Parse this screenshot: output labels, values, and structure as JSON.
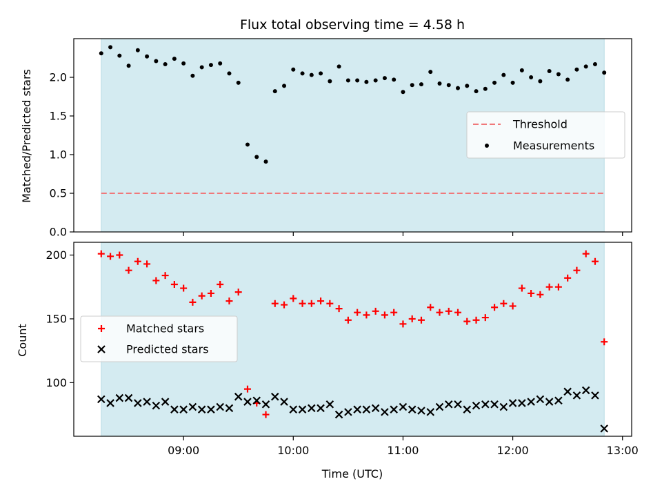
{
  "chart_data": [
    {
      "type": "scatter",
      "title": "Flux total observing time = 4.58 h",
      "xlabel": "",
      "ylabel": "Matched/Predicted stars",
      "ylim": [
        0,
        2.5
      ],
      "xlim": [
        "08:00",
        "13:05"
      ],
      "yticks": [
        0.0,
        0.5,
        1.0,
        1.5,
        2.0
      ],
      "ytick_labels": [
        "0.0",
        "0.5",
        "1.0",
        "1.5",
        "2.0"
      ],
      "shaded_span": [
        "08:15",
        "12:50"
      ],
      "shade_color": "#d4ebf1",
      "legend_position": "center-right",
      "threshold": {
        "name": "Threshold",
        "value": 0.5,
        "color": "#f0787a",
        "style": "dashed"
      },
      "series": [
        {
          "name": "Measurements",
          "color": "#000000",
          "marker": "dot",
          "x": [
            "08:15",
            "08:20",
            "08:25",
            "08:30",
            "08:35",
            "08:40",
            "08:45",
            "08:50",
            "08:55",
            "09:00",
            "09:05",
            "09:10",
            "09:15",
            "09:20",
            "09:25",
            "09:30",
            "09:35",
            "09:40",
            "09:45",
            "09:50",
            "09:55",
            "10:00",
            "10:05",
            "10:10",
            "10:15",
            "10:20",
            "10:25",
            "10:30",
            "10:35",
            "10:40",
            "10:45",
            "10:50",
            "10:55",
            "11:00",
            "11:05",
            "11:10",
            "11:15",
            "11:20",
            "11:25",
            "11:30",
            "11:35",
            "11:40",
            "11:45",
            "11:50",
            "11:55",
            "12:00",
            "12:05",
            "12:10",
            "12:15",
            "12:20",
            "12:25",
            "12:30",
            "12:35",
            "12:40",
            "12:45",
            "12:50"
          ],
          "y": [
            2.31,
            2.39,
            2.28,
            2.15,
            2.35,
            2.27,
            2.21,
            2.17,
            2.24,
            2.18,
            2.02,
            2.13,
            2.16,
            2.18,
            2.05,
            1.93,
            1.13,
            0.97,
            0.91,
            1.82,
            1.89,
            2.1,
            2.05,
            2.03,
            2.05,
            1.95,
            2.14,
            1.96,
            1.96,
            1.94,
            1.96,
            1.99,
            1.97,
            1.81,
            1.9,
            1.91,
            2.07,
            1.92,
            1.9,
            1.86,
            1.89,
            1.82,
            1.85,
            1.93,
            2.03,
            1.93,
            2.09,
            2.0,
            1.95,
            2.08,
            2.04,
            1.97,
            2.1,
            2.14,
            2.17,
            2.06
          ]
        }
      ]
    },
    {
      "type": "scatter",
      "title": "",
      "xlabel": "Time (UTC)",
      "ylabel": "Count",
      "ylim": [
        58,
        210
      ],
      "xlim": [
        "08:00",
        "13:05"
      ],
      "yticks": [
        100,
        150,
        200
      ],
      "ytick_labels": [
        "100",
        "150",
        "200"
      ],
      "xtick_labels": [
        "09:00",
        "10:00",
        "11:00",
        "12:00",
        "13:00"
      ],
      "shaded_span": [
        "08:15",
        "12:50"
      ],
      "shade_color": "#d4ebf1",
      "legend_position": "center-left",
      "series": [
        {
          "name": "Matched stars",
          "color": "#ff0000",
          "marker": "plus",
          "x": [
            "08:15",
            "08:20",
            "08:25",
            "08:30",
            "08:35",
            "08:40",
            "08:45",
            "08:50",
            "08:55",
            "09:00",
            "09:05",
            "09:10",
            "09:15",
            "09:20",
            "09:25",
            "09:30",
            "09:35",
            "09:40",
            "09:45",
            "09:50",
            "09:55",
            "10:00",
            "10:05",
            "10:10",
            "10:15",
            "10:20",
            "10:25",
            "10:30",
            "10:35",
            "10:40",
            "10:45",
            "10:50",
            "10:55",
            "11:00",
            "11:05",
            "11:10",
            "11:15",
            "11:20",
            "11:25",
            "11:30",
            "11:35",
            "11:40",
            "11:45",
            "11:50",
            "11:55",
            "12:00",
            "12:05",
            "12:10",
            "12:15",
            "12:20",
            "12:25",
            "12:30",
            "12:35",
            "12:40",
            "12:45",
            "12:50"
          ],
          "y": [
            201,
            199,
            200,
            188,
            195,
            193,
            180,
            184,
            177,
            174,
            163,
            168,
            170,
            177,
            164,
            171,
            95,
            84,
            75,
            162,
            161,
            166,
            162,
            162,
            164,
            162,
            158,
            149,
            155,
            153,
            156,
            153,
            155,
            146,
            150,
            149,
            159,
            155,
            156,
            155,
            148,
            149,
            151,
            159,
            162,
            160,
            174,
            170,
            169,
            175,
            175,
            182,
            188,
            201,
            195,
            132
          ]
        },
        {
          "name": "Predicted stars",
          "color": "#000000",
          "marker": "x",
          "x": [
            "08:15",
            "08:20",
            "08:25",
            "08:30",
            "08:35",
            "08:40",
            "08:45",
            "08:50",
            "08:55",
            "09:00",
            "09:05",
            "09:10",
            "09:15",
            "09:20",
            "09:25",
            "09:30",
            "09:35",
            "09:40",
            "09:45",
            "09:50",
            "09:55",
            "10:00",
            "10:05",
            "10:10",
            "10:15",
            "10:20",
            "10:25",
            "10:30",
            "10:35",
            "10:40",
            "10:45",
            "10:50",
            "10:55",
            "11:00",
            "11:05",
            "11:10",
            "11:15",
            "11:20",
            "11:25",
            "11:30",
            "11:35",
            "11:40",
            "11:45",
            "11:50",
            "11:55",
            "12:00",
            "12:05",
            "12:10",
            "12:15",
            "12:20",
            "12:25",
            "12:30",
            "12:35",
            "12:40",
            "12:45",
            "12:50"
          ],
          "y": [
            87,
            84,
            88,
            88,
            84,
            85,
            82,
            85,
            79,
            79,
            81,
            79,
            79,
            81,
            80,
            89,
            85,
            86,
            83,
            89,
            85,
            79,
            79,
            80,
            80,
            83,
            75,
            77,
            79,
            79,
            80,
            77,
            79,
            81,
            79,
            78,
            77,
            81,
            83,
            83,
            79,
            82,
            83,
            83,
            81,
            84,
            84,
            85,
            87,
            85,
            86,
            93,
            90,
            94,
            90,
            64
          ]
        }
      ]
    }
  ]
}
